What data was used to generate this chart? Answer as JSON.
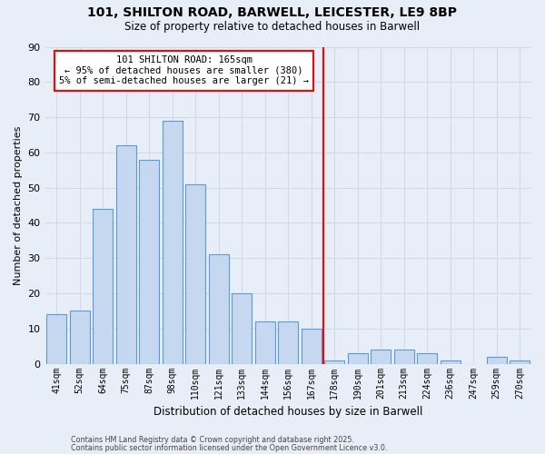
{
  "title1": "101, SHILTON ROAD, BARWELL, LEICESTER, LE9 8BP",
  "title2": "Size of property relative to detached houses in Barwell",
  "xlabel": "Distribution of detached houses by size in Barwell",
  "ylabel": "Number of detached properties",
  "bar_labels": [
    "41sqm",
    "52sqm",
    "64sqm",
    "75sqm",
    "87sqm",
    "98sqm",
    "110sqm",
    "121sqm",
    "133sqm",
    "144sqm",
    "156sqm",
    "167sqm",
    "178sqm",
    "190sqm",
    "201sqm",
    "213sqm",
    "224sqm",
    "236sqm",
    "247sqm",
    "259sqm",
    "270sqm"
  ],
  "bar_values": [
    14,
    15,
    44,
    62,
    58,
    69,
    51,
    31,
    20,
    12,
    12,
    10,
    1,
    3,
    4,
    4,
    3,
    1,
    0,
    2,
    1
  ],
  "bar_color": "#c5d8f0",
  "bar_edge_color": "#5b9bd5",
  "grid_color": "#d0d8e8",
  "vline_x_idx": 11.5,
  "vline_color": "red",
  "annotation_line1": "101 SHILTON ROAD: 165sqm",
  "annotation_line2": "← 95% of detached houses are smaller (380)",
  "annotation_line3": "5% of semi-detached houses are larger (21) →",
  "footnote1": "Contains HM Land Registry data © Crown copyright and database right 2025.",
  "footnote2": "Contains public sector information licensed under the Open Government Licence v3.0.",
  "ylim": [
    0,
    90
  ],
  "yticks": [
    0,
    10,
    20,
    30,
    40,
    50,
    60,
    70,
    80,
    90
  ],
  "background_color": "#e8eef8"
}
